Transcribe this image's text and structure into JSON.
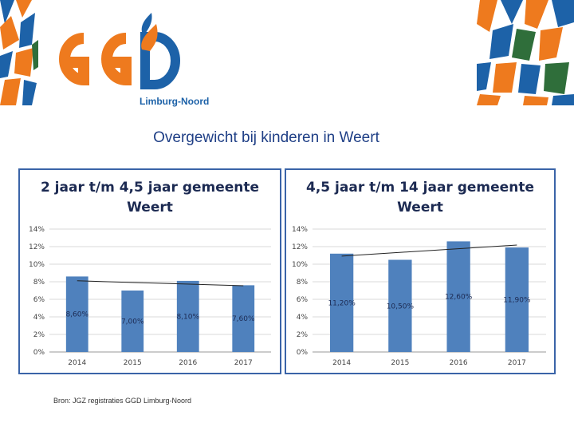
{
  "header": {
    "logo_text": "GGD",
    "logo_subtitle": "Limburg-Noord"
  },
  "page_title": "Overgewicht bij kinderen in Weert",
  "source_note": "Bron: JGZ registraties GGD Limburg-Noord",
  "colors": {
    "bar": "#4f81bd",
    "panel_border": "#3a64a8",
    "logo_orange": "#ee7a1e",
    "logo_blue": "#1d62a8",
    "title_text": "#1f3f86"
  },
  "chart_data": [
    {
      "type": "bar",
      "title_line1": "2 jaar t/m 4,5 jaar gemeente",
      "title_line2": "Weert",
      "categories": [
        "2014",
        "2015",
        "2016",
        "2017"
      ],
      "values": [
        8.6,
        7.0,
        8.1,
        7.6
      ],
      "data_labels": [
        "8,60%",
        "7,00%",
        "8,10%",
        "7,60%"
      ],
      "y_ticks": [
        "0%",
        "2%",
        "4%",
        "6%",
        "8%",
        "10%",
        "12%",
        "14%"
      ],
      "ylim": [
        0,
        14
      ],
      "trendline": true,
      "grid": true
    },
    {
      "type": "bar",
      "title_line1": "4,5 jaar t/m 14 jaar gemeente",
      "title_line2": "Weert",
      "categories": [
        "2014",
        "2015",
        "2016",
        "2017"
      ],
      "values": [
        11.2,
        10.5,
        12.6,
        11.9
      ],
      "data_labels": [
        "11,20%",
        "10,50%",
        "12,60%",
        "11,90%"
      ],
      "y_ticks": [
        "0%",
        "2%",
        "4%",
        "6%",
        "8%",
        "10%",
        "12%",
        "14%"
      ],
      "ylim": [
        0,
        14
      ],
      "trendline": true,
      "grid": true
    }
  ]
}
